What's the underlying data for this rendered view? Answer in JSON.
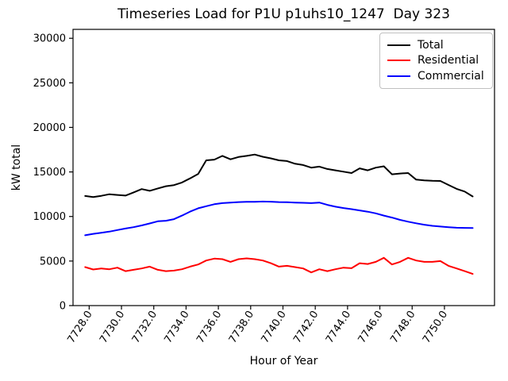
{
  "chart_data": {
    "type": "line",
    "title": "Timeseries Load for P1U p1uhs10_1247  Day 323",
    "xlabel": "Hour of Year",
    "ylabel": "kW total",
    "grid": false,
    "legend_position": "upper right",
    "xlim": [
      7727.0,
      7753.1
    ],
    "ylim": [
      0,
      31000
    ],
    "x_ticks": [
      7728,
      7730,
      7732,
      7734,
      7736,
      7738,
      7740,
      7742,
      7744,
      7746,
      7748,
      7750
    ],
    "x_tick_labels": [
      "7728.0",
      "7730.0",
      "7732.0",
      "7734.0",
      "7736.0",
      "7738.0",
      "7740.0",
      "7742.0",
      "7744.0",
      "7746.0",
      "7748.0",
      "7750.0"
    ],
    "y_ticks": [
      0,
      5000,
      10000,
      15000,
      20000,
      25000,
      30000
    ],
    "y_tick_labels": [
      "0",
      "5000",
      "10000",
      "15000",
      "20000",
      "25000",
      "30000"
    ],
    "x": [
      7727.75,
      7728.25,
      7728.75,
      7729.25,
      7729.75,
      7730.25,
      7730.75,
      7731.25,
      7731.75,
      7732.25,
      7732.75,
      7733.25,
      7733.75,
      7734.25,
      7734.75,
      7735.25,
      7735.75,
      7736.25,
      7736.75,
      7737.25,
      7737.75,
      7738.25,
      7738.75,
      7739.25,
      7739.75,
      7740.25,
      7740.75,
      7741.25,
      7741.75,
      7742.25,
      7742.75,
      7743.25,
      7743.75,
      7744.25,
      7744.75,
      7745.25,
      7745.75,
      7746.25,
      7746.75,
      7747.25,
      7747.75,
      7748.25,
      7748.75,
      7749.25,
      7749.75,
      7750.25,
      7750.75,
      7751.25,
      7751.75
    ],
    "series": [
      {
        "name": "Total",
        "color": "#000000",
        "values": [
          12300,
          12180,
          12320,
          12500,
          12420,
          12350,
          12700,
          13080,
          12880,
          13150,
          13400,
          13520,
          13820,
          14280,
          14780,
          16300,
          16380,
          16800,
          16420,
          16680,
          16800,
          16950,
          16700,
          16520,
          16300,
          16220,
          15920,
          15780,
          15480,
          15600,
          15330,
          15180,
          15030,
          14880,
          15400,
          15180,
          15480,
          15630,
          14730,
          14820,
          14880,
          14140,
          14050,
          14000,
          13990,
          13540,
          13100,
          12800,
          12250
        ]
      },
      {
        "name": "Residential",
        "color": "#ff0000",
        "values": [
          4320,
          4050,
          4170,
          4080,
          4260,
          3870,
          4020,
          4170,
          4375,
          4020,
          3870,
          3930,
          4080,
          4375,
          4610,
          5060,
          5270,
          5210,
          4910,
          5210,
          5300,
          5210,
          5060,
          4760,
          4375,
          4460,
          4320,
          4170,
          3720,
          4080,
          3870,
          4080,
          4260,
          4200,
          4760,
          4670,
          4910,
          5360,
          4610,
          4910,
          5360,
          5060,
          4910,
          4910,
          5000,
          4460,
          4170,
          3870,
          3550
        ]
      },
      {
        "name": "Commercial",
        "color": "#0000ff",
        "values": [
          7890,
          8050,
          8180,
          8300,
          8480,
          8650,
          8800,
          9000,
          9220,
          9460,
          9520,
          9700,
          10100,
          10550,
          10920,
          11150,
          11380,
          11500,
          11550,
          11620,
          11650,
          11650,
          11680,
          11660,
          11620,
          11600,
          11560,
          11540,
          11500,
          11560,
          11300,
          11100,
          10950,
          10820,
          10680,
          10540,
          10350,
          10100,
          9880,
          9620,
          9420,
          9240,
          9080,
          8950,
          8870,
          8800,
          8740,
          8720,
          8700
        ]
      }
    ]
  }
}
